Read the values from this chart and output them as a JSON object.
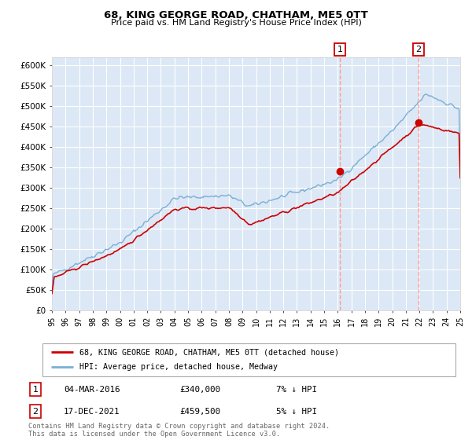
{
  "title": "68, KING GEORGE ROAD, CHATHAM, ME5 0TT",
  "subtitle": "Price paid vs. HM Land Registry's House Price Index (HPI)",
  "ylim": [
    0,
    620000
  ],
  "yticks": [
    0,
    50000,
    100000,
    150000,
    200000,
    250000,
    300000,
    350000,
    400000,
    450000,
    500000,
    550000,
    600000
  ],
  "background_color": "#ffffff",
  "plot_bg_color": "#dce8f5",
  "grid_color": "#ffffff",
  "legend_label_red": "68, KING GEORGE ROAD, CHATHAM, ME5 0TT (detached house)",
  "legend_label_blue": "HPI: Average price, detached house, Medway",
  "annotation1_date": "04-MAR-2016",
  "annotation1_price": "£340,000",
  "annotation1_hpi": "7% ↓ HPI",
  "annotation2_date": "17-DEC-2021",
  "annotation2_price": "£459,500",
  "annotation2_hpi": "5% ↓ HPI",
  "footer": "Contains HM Land Registry data © Crown copyright and database right 2024.\nThis data is licensed under the Open Government Licence v3.0.",
  "red_color": "#cc0000",
  "blue_color": "#7bafd4",
  "vline_color": "#ff9999",
  "point1_year": 2016.17,
  "point1_y": 340000,
  "point2_year": 2021.92,
  "point2_y": 459500,
  "xmin": 1995,
  "xmax": 2025
}
